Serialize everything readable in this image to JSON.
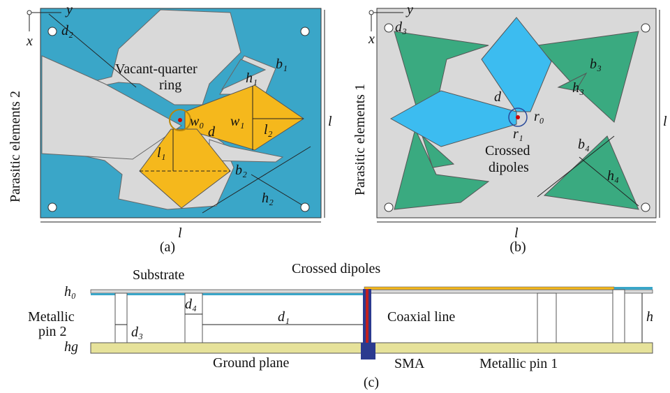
{
  "panel_a": {
    "axis_y": "y",
    "axis_x": "x",
    "d2": "d₂",
    "vacant_ring": [
      "Vacant-quarter",
      "ring"
    ],
    "b1": "b₁",
    "h1": "h₁",
    "w0": "w₀",
    "w1": "w₁",
    "l2": "l₂",
    "l1": "l₁",
    "d": "d",
    "b2": "b₂",
    "h2": "h₂",
    "l_side": "l",
    "l_bottom": "l",
    "parasitic": "Parasitic elements 2",
    "caption": "(a)"
  },
  "panel_b": {
    "axis_y": "y",
    "axis_x": "x",
    "d3": "d₃",
    "b3": "b₃",
    "h3": "h₃",
    "d": "d",
    "r0": "r₀",
    "r1": "r₁",
    "crossed": [
      "Crossed",
      "dipoles"
    ],
    "b4": "b₄",
    "h4": "h₄",
    "l_side": "l",
    "l_bottom": "l",
    "parasitic": "Parasitic elements 1",
    "caption": "(b)"
  },
  "panel_c": {
    "substrate": "Substrate",
    "crossed_dipoles": "Crossed dipoles",
    "h0": "h₀",
    "d4": "d₄",
    "pin2": [
      "Metallic",
      "pin 2"
    ],
    "d3": "d₃",
    "d1": "d₁",
    "coaxial": "Coaxial line",
    "h": "h",
    "hg": "hg",
    "ground": "Ground plane",
    "sma": "SMA",
    "pin1": "Metallic pin 1",
    "caption": "(c)"
  }
}
